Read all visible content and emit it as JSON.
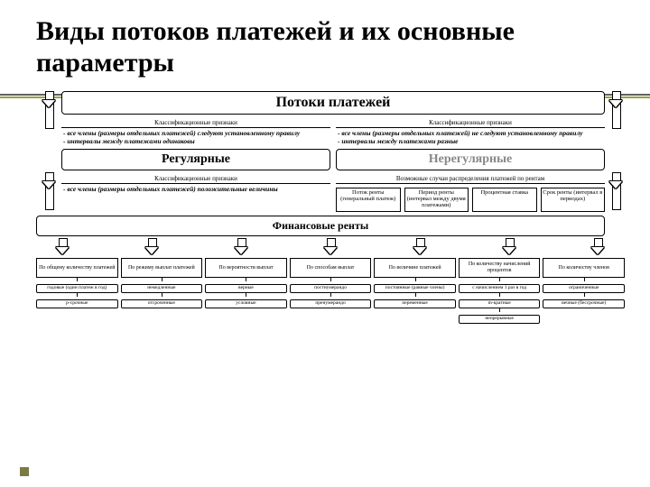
{
  "colors": {
    "accent": "#9aa04a",
    "ruleTop": "#606060",
    "ruleBottom": "#9aa04a",
    "bullet": "#7a7a45"
  },
  "title": "Виды потоков платежей и их основные параметры",
  "level1": "Потоки платежей",
  "classLabel": "Классификационные признаки",
  "split": {
    "left": "- все члены (размеры отдельных платежей) следуют установленному правилу\n- интервалы между платежами одинаковы",
    "right": "- все члены (размеры отдельных платежей) не следуют установленному правилу\n- интервалы между платежами разные"
  },
  "level2": {
    "left": "Регулярные",
    "right": "Нерегулярные"
  },
  "subLabelLeft": "Классификационные признаки",
  "subLabelRight": "Возможные случаи распределения платежей по рентам",
  "subTextLeft": "- все члены (размеры отдельных платежей) положительные величины",
  "rightBoxes": [
    "Поток ренты (генеральный платеж)",
    "Период ренты (интервал между двумя платежами)",
    "Процентная ставка",
    "Срок ренты (интервал в периодах)"
  ],
  "level3": "Финансовые ренты",
  "columns": [
    {
      "h": "По общему количеству платежей",
      "tags": [
        "годовые (один платеж в год)",
        "p-срочные"
      ]
    },
    {
      "h": "По режиму выплат платежей",
      "tags": [
        "немедленные",
        "отсроченные"
      ]
    },
    {
      "h": "По вероятности выплат",
      "tags": [
        "верные",
        "условные"
      ]
    },
    {
      "h": "По способам выплат",
      "tags": [
        "постнумерандо",
        "пренумерандо"
      ]
    },
    {
      "h": "По величине платежей",
      "tags": [
        "постоянные (равные члены)",
        "переменные"
      ]
    },
    {
      "h": "По количеству начислений процентов",
      "tags": [
        "с начислением 1 раз в год",
        "m-кратные",
        "непрерывные"
      ]
    },
    {
      "h": "По количеству членов",
      "tags": [
        "ограниченные",
        "вечные (бессрочные)"
      ]
    }
  ]
}
